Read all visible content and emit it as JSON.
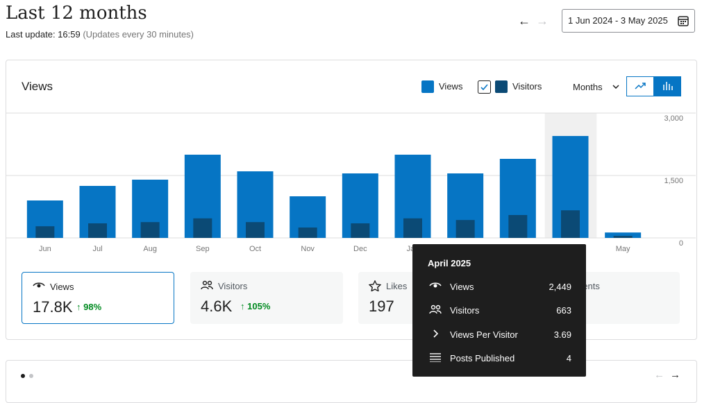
{
  "header": {
    "title": "Last 12 months",
    "last_update": "Last update: 16:59",
    "update_note": "(Updates every 30 minutes)",
    "date_range": "1 Jun 2024 - 3 May 2025"
  },
  "card": {
    "title": "Views",
    "period": "Months"
  },
  "chart_data": {
    "type": "bar",
    "categories": [
      "Jun",
      "Jul",
      "Aug",
      "Sep",
      "Oct",
      "Nov",
      "Dec",
      "Jan",
      null,
      null,
      null,
      "May"
    ],
    "series": [
      {
        "name": "Views",
        "color": "#0675c4",
        "values": [
          900,
          1250,
          1400,
          2000,
          1600,
          1000,
          1550,
          2000,
          1550,
          1900,
          2449,
          130
        ]
      },
      {
        "name": "Visitors",
        "color": "#0b4a75",
        "values": [
          280,
          350,
          380,
          470,
          380,
          250,
          350,
          470,
          430,
          550,
          663,
          50
        ]
      }
    ],
    "ylim": [
      0,
      3000
    ],
    "yticks": [
      0,
      {
        "value": 1500,
        "label": "1,500"
      },
      {
        "value": 3000,
        "label": "3,000"
      }
    ],
    "grid": true,
    "highlight_index": 10
  },
  "stats": [
    {
      "label": "Views",
      "value": "17.8K",
      "change": "98%"
    },
    {
      "label": "Visitors",
      "value": "4.6K",
      "change": "105%"
    },
    {
      "label": "Likes",
      "value": "197"
    },
    {
      "label": "Comments"
    }
  ],
  "tooltip": {
    "title": "April 2025",
    "rows": [
      {
        "label": "Views",
        "value": "2,449"
      },
      {
        "label": "Visitors",
        "value": "663"
      },
      {
        "label": "Views Per Visitor",
        "value": "3.69"
      },
      {
        "label": "Posts Published",
        "value": "4"
      }
    ]
  }
}
